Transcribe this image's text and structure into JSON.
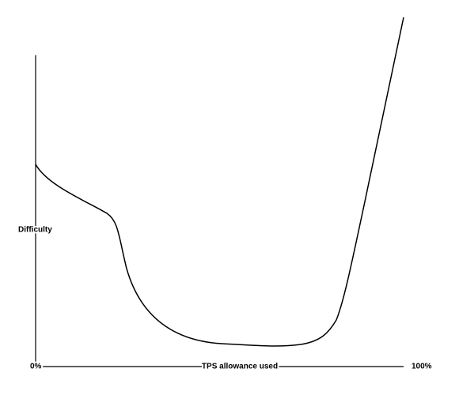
{
  "y_axis_label": "Difficulty",
  "x_axis_label": "TPS allowance used",
  "x_start_label": "0%",
  "x_end_label": "100%"
}
